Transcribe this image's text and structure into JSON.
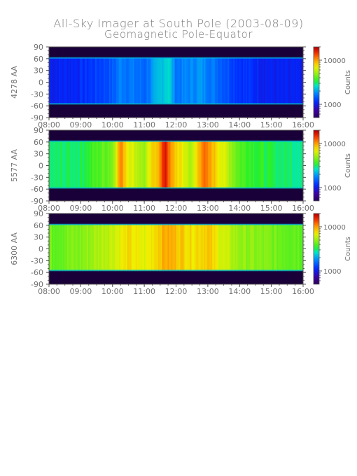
{
  "title": "All-Sky Imager at South Pole (2003-08-09)",
  "subtitle": "Geomagnetic Pole-Equator",
  "colors": {
    "background_dark": "#1a0038",
    "axis": "#555555",
    "text": "#707070"
  },
  "chart_data": [
    {
      "type": "heatmap",
      "ylabel": "4278 AA",
      "colorbar_label": "Counts",
      "colorbar_ticks": [
        "10000",
        "1000"
      ],
      "colorbar_range": [
        500,
        20000
      ],
      "x_ticks": [
        "08:00",
        "09:00",
        "10:00",
        "11:00",
        "12:00",
        "13:00",
        "14:00",
        "15:00",
        "16:00"
      ],
      "y_ticks": [
        "90",
        "60",
        "30",
        "0",
        "-30",
        "-60",
        "-90"
      ],
      "xlim": [
        "08:00",
        "16:00"
      ],
      "ylim": [
        -90,
        90
      ],
      "observed_lat_range": [
        -55,
        62
      ],
      "dominant_color": "blue",
      "level_profile": [
        {
          "time": "08:00",
          "level": 0.2
        },
        {
          "time": "09:00",
          "level": 0.22
        },
        {
          "time": "10:00",
          "level": 0.28
        },
        {
          "time": "10:15",
          "level": 0.34
        },
        {
          "time": "11:00",
          "level": 0.3
        },
        {
          "time": "11:35",
          "level": 0.42
        },
        {
          "time": "11:45",
          "level": 0.45
        },
        {
          "time": "12:00",
          "level": 0.32
        },
        {
          "time": "12:45",
          "level": 0.36
        },
        {
          "time": "13:00",
          "level": 0.34
        },
        {
          "time": "14:00",
          "level": 0.24
        },
        {
          "time": "15:00",
          "level": 0.2
        },
        {
          "time": "16:00",
          "level": 0.19
        }
      ]
    },
    {
      "type": "heatmap",
      "ylabel": "5577 AA",
      "colorbar_label": "Counts",
      "colorbar_ticks": [
        "10000",
        "1000"
      ],
      "colorbar_range": [
        500,
        20000
      ],
      "x_ticks": [
        "08:00",
        "09:00",
        "10:00",
        "11:00",
        "12:00",
        "13:00",
        "14:00",
        "15:00",
        "16:00"
      ],
      "y_ticks": [
        "90",
        "60",
        "30",
        "0",
        "-30",
        "-60",
        "-90"
      ],
      "xlim": [
        "08:00",
        "16:00"
      ],
      "ylim": [
        -90,
        90
      ],
      "observed_lat_range": [
        -57,
        62
      ],
      "dominant_color": "green",
      "level_profile": [
        {
          "time": "08:00",
          "level": 0.48
        },
        {
          "time": "09:00",
          "level": 0.5
        },
        {
          "time": "10:00",
          "level": 0.6
        },
        {
          "time": "10:15",
          "level": 0.84
        },
        {
          "time": "10:30",
          "level": 0.72
        },
        {
          "time": "11:00",
          "level": 0.62
        },
        {
          "time": "11:15",
          "level": 0.74
        },
        {
          "time": "11:30",
          "level": 0.82
        },
        {
          "time": "11:40",
          "level": 0.97
        },
        {
          "time": "11:50",
          "level": 0.8
        },
        {
          "time": "12:30",
          "level": 0.64
        },
        {
          "time": "12:50",
          "level": 0.86
        },
        {
          "time": "13:10",
          "level": 0.78
        },
        {
          "time": "14:00",
          "level": 0.56
        },
        {
          "time": "15:00",
          "level": 0.5
        },
        {
          "time": "16:00",
          "level": 0.48
        }
      ]
    },
    {
      "type": "heatmap",
      "ylabel": "6300 AA",
      "colorbar_label": "Counts",
      "colorbar_ticks": [
        "10000",
        "1000"
      ],
      "colorbar_range": [
        500,
        20000
      ],
      "x_ticks": [
        "08:00",
        "09:00",
        "10:00",
        "11:00",
        "12:00",
        "13:00",
        "14:00",
        "15:00",
        "16:00"
      ],
      "y_ticks": [
        "90",
        "60",
        "30",
        "0",
        "-30",
        "-60",
        "-90"
      ],
      "xlim": [
        "08:00",
        "16:00"
      ],
      "ylim": [
        -90,
        90
      ],
      "observed_lat_range": [
        -55,
        62
      ],
      "dominant_color": "yellow-green",
      "level_profile": [
        {
          "time": "08:00",
          "level": 0.58
        },
        {
          "time": "09:00",
          "level": 0.6
        },
        {
          "time": "10:00",
          "level": 0.68
        },
        {
          "time": "10:30",
          "level": 0.74
        },
        {
          "time": "11:00",
          "level": 0.7
        },
        {
          "time": "11:40",
          "level": 0.8
        },
        {
          "time": "12:00",
          "level": 0.78
        },
        {
          "time": "12:30",
          "level": 0.74
        },
        {
          "time": "13:00",
          "level": 0.77
        },
        {
          "time": "13:30",
          "level": 0.68
        },
        {
          "time": "14:00",
          "level": 0.62
        },
        {
          "time": "15:00",
          "level": 0.59
        },
        {
          "time": "16:00",
          "level": 0.58
        }
      ]
    }
  ]
}
